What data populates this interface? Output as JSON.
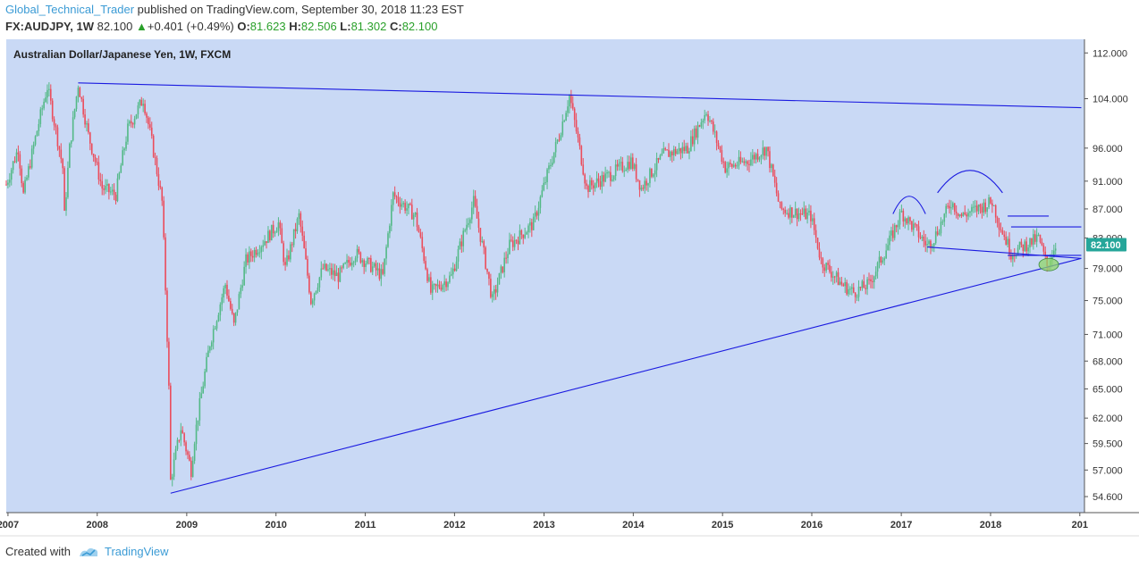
{
  "header": {
    "author": "Global_Technical_Trader",
    "published": " published on TradingView.com, September 30, 2018 11:23 EST",
    "symbol": "FX:AUDJPY, 1W",
    "last": "82.100",
    "up_arrow": "▲",
    "change": "+0.401 (+0.49%)",
    "o_label": "O:",
    "o_value": "81.623",
    "h_label": "H:",
    "h_value": "82.506",
    "l_label": "L:",
    "l_value": "81.302",
    "c_label": "C:",
    "c_value": "82.100"
  },
  "footer": {
    "created_with": "Created with",
    "brand": "TradingView"
  },
  "colors": {
    "plot_bg": "#c9d9f5",
    "up": "#53b987",
    "down": "#eb4d5c",
    "trendline": "#1a1ae0",
    "highlight": "#8fd46a",
    "price_badge": "#26a69a"
  },
  "chart_data": {
    "type": "candlestick",
    "title": "Australian Dollar/Japanese Yen, 1W, FXCM",
    "scale": "log",
    "ylim": [
      53.2,
      114.5
    ],
    "y_ticks": [
      "112.000",
      "104.000",
      "96.000",
      "91.000",
      "87.000",
      "83.000",
      "79.000",
      "75.000",
      "71.000",
      "68.000",
      "65.000",
      "62.000",
      "59.500",
      "57.000",
      "54.600"
    ],
    "x_ticks": [
      "2007",
      "2008",
      "2009",
      "2010",
      "2011",
      "2012",
      "2013",
      "2014",
      "2015",
      "2016",
      "2017",
      "2018",
      "201"
    ],
    "last_price": "82.100",
    "path_points": [
      [
        "2006-12-25",
        90.5
      ],
      [
        "2007-02-12",
        96
      ],
      [
        "2007-03-05",
        89
      ],
      [
        "2007-05-07",
        100
      ],
      [
        "2007-06-11",
        106
      ],
      [
        "2007-08-13",
        93
      ],
      [
        "2007-08-20",
        86
      ],
      [
        "2007-09-10",
        96
      ],
      [
        "2007-10-15",
        106.5
      ],
      [
        "2007-11-26",
        98
      ],
      [
        "2008-01-21",
        90
      ],
      [
        "2008-03-17",
        89
      ],
      [
        "2008-05-05",
        99
      ],
      [
        "2008-07-07",
        104
      ],
      [
        "2008-08-11",
        97
      ],
      [
        "2008-09-22",
        88
      ],
      [
        "2008-10-20",
        65
      ],
      [
        "2008-10-27",
        56
      ],
      [
        "2008-12-08",
        61
      ],
      [
        "2009-01-19",
        57
      ],
      [
        "2009-02-02",
        60
      ],
      [
        "2009-04-06",
        70
      ],
      [
        "2009-06-08",
        77
      ],
      [
        "2009-07-13",
        72
      ],
      [
        "2009-08-31",
        80
      ],
      [
        "2009-11-23",
        83
      ],
      [
        "2010-01-11",
        85
      ],
      [
        "2010-02-08",
        79
      ],
      [
        "2010-04-05",
        86
      ],
      [
        "2010-05-24",
        75
      ],
      [
        "2010-07-12",
        79
      ],
      [
        "2010-09-13",
        78
      ],
      [
        "2010-11-22",
        81
      ],
      [
        "2011-03-14",
        78
      ],
      [
        "2011-04-25",
        89
      ],
      [
        "2011-07-25",
        86
      ],
      [
        "2011-09-26",
        76
      ],
      [
        "2011-12-19",
        78
      ],
      [
        "2012-03-19",
        88
      ],
      [
        "2012-06-04",
        75
      ],
      [
        "2012-08-13",
        82
      ],
      [
        "2012-11-19",
        85
      ],
      [
        "2013-03-04",
        98
      ],
      [
        "2013-04-15",
        104.5
      ],
      [
        "2013-06-24",
        90
      ],
      [
        "2013-09-30",
        92
      ],
      [
        "2013-12-23",
        94
      ],
      [
        "2014-02-03",
        90
      ],
      [
        "2014-05-05",
        95
      ],
      [
        "2014-08-11",
        96
      ],
      [
        "2014-10-27",
        102
      ],
      [
        "2015-01-12",
        93
      ],
      [
        "2015-04-13",
        94
      ],
      [
        "2015-06-29",
        96
      ],
      [
        "2015-08-24",
        87
      ],
      [
        "2015-12-28",
        86
      ],
      [
        "2016-02-08",
        80
      ],
      [
        "2016-05-02",
        77
      ],
      [
        "2016-06-20",
        76
      ],
      [
        "2016-08-22",
        77
      ],
      [
        "2016-11-07",
        82
      ],
      [
        "2017-01-02",
        86.5
      ],
      [
        "2017-04-17",
        82
      ],
      [
        "2017-05-15",
        83
      ],
      [
        "2017-07-24",
        88
      ],
      [
        "2017-09-04",
        86
      ],
      [
        "2018-01-08",
        88
      ],
      [
        "2018-02-05",
        85
      ],
      [
        "2018-03-26",
        81
      ],
      [
        "2018-05-21",
        82
      ],
      [
        "2018-07-16",
        83
      ],
      [
        "2018-08-20",
        79.3
      ],
      [
        "2018-09-24",
        82.1
      ]
    ],
    "trendlines": [
      {
        "from": [
          "2007-10-15",
          106.7
        ],
        "to": [
          "2019-01-07",
          102.5
        ]
      },
      {
        "from": [
          "2008-10-27",
          54.9
        ],
        "to": [
          "2019-01-07",
          80.3
        ]
      },
      {
        "from": [
          "2017-04-17",
          81.8
        ],
        "to": [
          "2019-01-07",
          80.3
        ]
      },
      {
        "from": [
          "2018-03-12",
          80.7
        ],
        "to": [
          "2019-01-07",
          80.7
        ]
      },
      {
        "from": [
          "2018-03-26",
          84.5
        ],
        "to": [
          "2019-01-07",
          84.5
        ]
      },
      {
        "from": [
          "2018-03-12",
          86.0
        ],
        "to": [
          "2018-08-27",
          86.0
        ]
      }
    ],
    "arcs": [
      {
        "from": [
          "2016-11-28",
          86.3
        ],
        "to": [
          "2017-04-10",
          86.3
        ],
        "peak": 88.8
      },
      {
        "from": [
          "2017-05-29",
          89.3
        ],
        "to": [
          "2018-02-19",
          89.3
        ],
        "peak": 92.6
      }
    ],
    "highlight": {
      "at": [
        "2018-08-27",
        79.5
      ]
    }
  }
}
